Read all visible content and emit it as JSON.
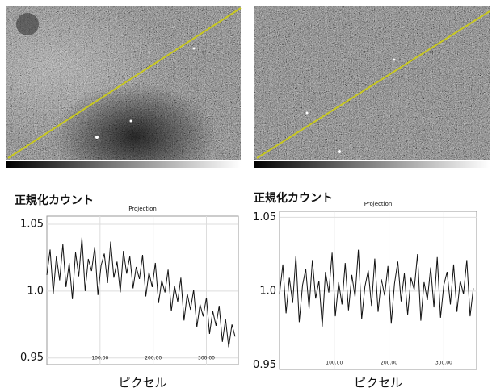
{
  "chart_data": [
    {
      "type": "line",
      "title": "Projection",
      "y_label": "正規化カウント",
      "x_label": "ピクセル",
      "color": "#111111",
      "grid": true,
      "x": [
        0,
        6,
        12,
        18,
        24,
        30,
        36,
        42,
        48,
        54,
        60,
        66,
        72,
        78,
        84,
        90,
        96,
        102,
        108,
        114,
        120,
        126,
        132,
        138,
        144,
        150,
        156,
        162,
        168,
        174,
        180,
        186,
        192,
        198,
        204,
        210,
        216,
        222,
        228,
        234,
        240,
        246,
        252,
        258,
        264,
        270,
        276,
        282,
        288,
        294,
        300,
        306,
        312,
        318,
        324,
        330,
        336,
        342,
        348,
        354
      ],
      "values": [
        1.012,
        1.031,
        0.998,
        1.026,
        1.008,
        1.035,
        1.003,
        1.021,
        0.994,
        1.029,
        1.011,
        1.04,
        1.0,
        1.024,
        1.015,
        1.033,
        0.997,
        1.019,
        1.028,
        1.006,
        1.037,
        1.01,
        1.022,
        0.999,
        1.03,
        1.013,
        1.026,
        1.002,
        1.018,
        1.009,
        1.027,
        0.996,
        1.014,
        1.003,
        1.021,
        0.991,
        1.008,
        0.999,
        1.016,
        0.985,
        1.004,
        0.992,
        1.01,
        0.978,
        0.998,
        0.986,
        1.001,
        0.973,
        0.99,
        0.981,
        0.995,
        0.968,
        0.985,
        0.974,
        0.989,
        0.962,
        0.979,
        0.958,
        0.975,
        0.966
      ],
      "xlim": [
        0,
        360
      ],
      "xticks": [
        {
          "value": 100,
          "label": "100.00"
        },
        {
          "value": 200,
          "label": "200.00"
        },
        {
          "value": 300,
          "label": "300.00"
        }
      ],
      "ylim": [
        0.945,
        1.056
      ],
      "yticks": [
        0.95,
        {
          "value": 1,
          "label": "1.0"
        },
        1.05
      ]
    },
    {
      "type": "line",
      "title": "Projection",
      "y_label": "正規化カウント",
      "x_label": "ピクセル",
      "color": "#111111",
      "grid": true,
      "x": [
        0,
        6,
        12,
        18,
        24,
        30,
        36,
        42,
        48,
        54,
        60,
        66,
        72,
        78,
        84,
        90,
        96,
        102,
        108,
        114,
        120,
        126,
        132,
        138,
        144,
        150,
        156,
        162,
        168,
        174,
        180,
        186,
        192,
        198,
        204,
        210,
        216,
        222,
        228,
        234,
        240,
        246,
        252,
        258,
        264,
        270,
        276,
        282,
        288,
        294,
        300,
        306,
        312,
        318,
        324,
        330,
        336,
        342,
        348,
        354
      ],
      "values": [
        0.998,
        1.018,
        0.985,
        1.009,
        0.992,
        1.024,
        0.979,
        1.004,
        1.015,
        0.988,
        1.021,
        0.995,
        1.007,
        0.976,
        1.013,
        0.999,
        1.026,
        0.983,
        1.006,
        0.991,
        1.019,
        0.987,
        1.011,
        0.996,
        1.028,
        0.981,
        1.003,
        1.014,
        0.99,
        1.022,
        0.986,
        1.008,
        0.997,
        1.017,
        0.978,
        1.005,
        1.02,
        0.993,
        1.012,
        0.984,
        1.009,
        1.001,
        1.025,
        0.98,
        1.006,
        0.994,
        1.016,
        0.989,
        1.023,
        0.982,
        1.004,
        1.013,
        0.991,
        1.018,
        0.986,
        1.007,
        0.998,
        1.021,
        0.983,
        1.002
      ],
      "xlim": [
        0,
        360
      ],
      "xticks": [
        {
          "value": 100,
          "label": "100.00"
        },
        {
          "value": 200,
          "label": "200.00"
        },
        {
          "value": 300,
          "label": "300.00"
        }
      ],
      "ylim": [
        0.947,
        1.054
      ],
      "yticks": [
        0.95,
        {
          "value": 1,
          "label": "1.0"
        },
        1.05
      ]
    }
  ]
}
